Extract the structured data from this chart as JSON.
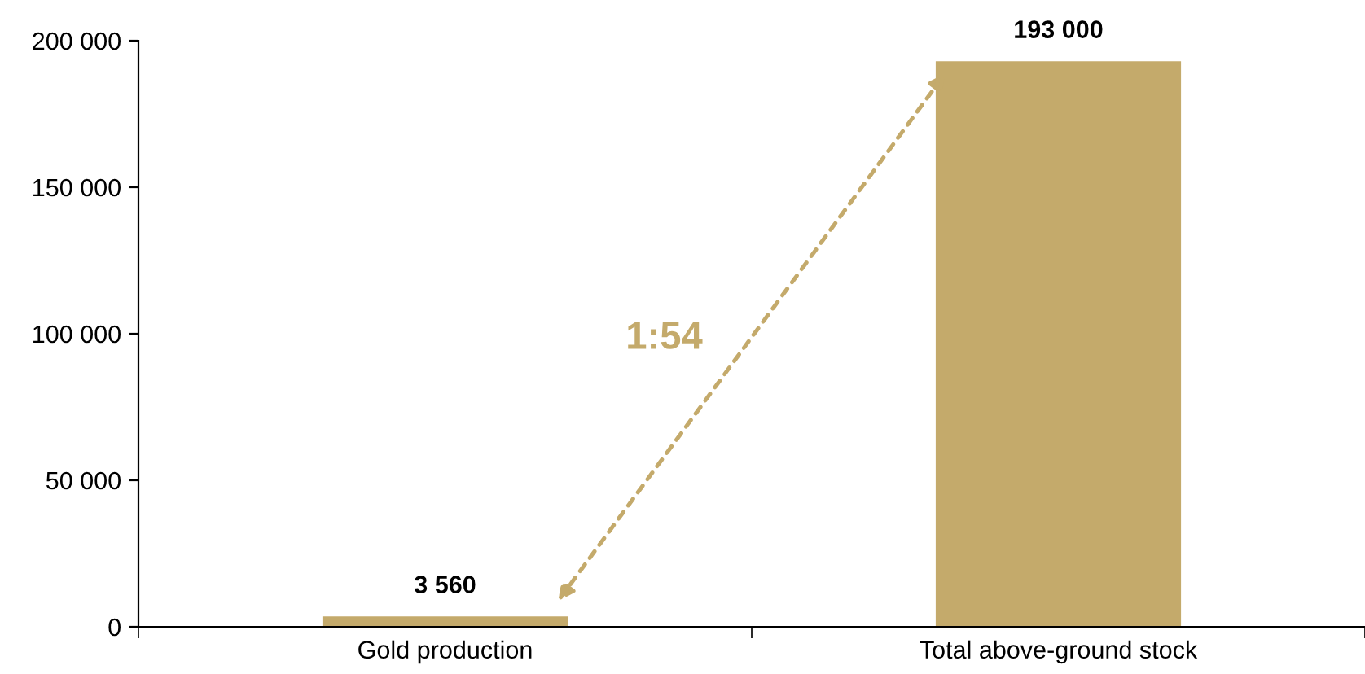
{
  "chart_data": {
    "type": "bar",
    "categories": [
      "Gold production",
      "Total above-ground stock"
    ],
    "values": [
      3560,
      193000
    ],
    "color": "#c4aa6b",
    "value_labels": [
      "3 560",
      "193 000"
    ],
    "ylim": [
      0,
      200000
    ],
    "yticks": [
      {
        "value": 0,
        "label": "0"
      },
      {
        "value": 50000,
        "label": "50 000"
      },
      {
        "value": 100000,
        "label": "100 000"
      },
      {
        "value": 150000,
        "label": "150 000"
      },
      {
        "value": 200000,
        "label": "200 000"
      }
    ],
    "annotations": [
      "1:54"
    ],
    "grid": false,
    "legend": false
  }
}
